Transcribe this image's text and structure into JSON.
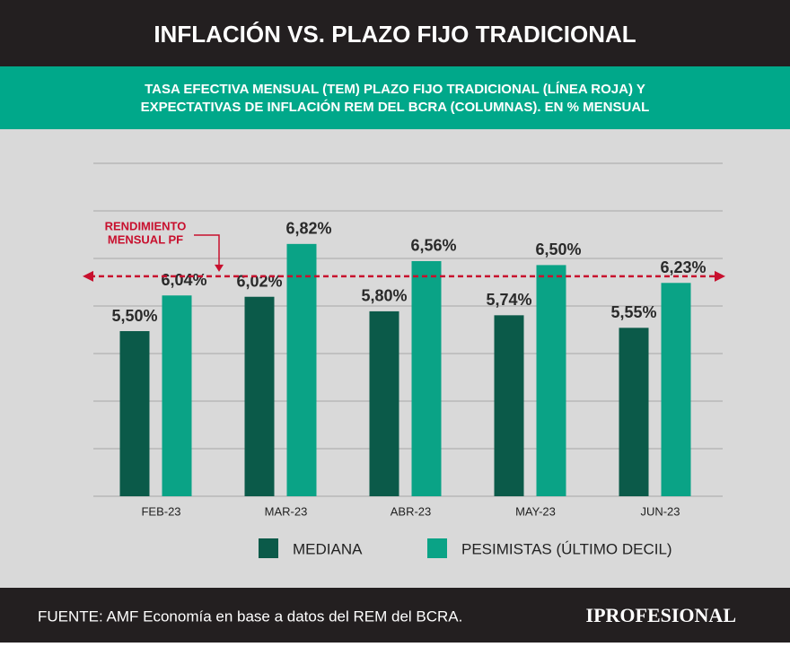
{
  "chart_data": {
    "type": "bar",
    "title": "INFLACIÓN VS. PLAZO FIJO TRADICIONAL",
    "subtitle": [
      "TASA EFECTIVA MENSUAL (TEM) PLAZO FIJO TRADICIONAL (LÍNEA ROJA) Y",
      "EXPECTATIVAS DE INFLACIÓN REM DEL BCRA (COLUMNAS). EN % MENSUAL"
    ],
    "categories": [
      "FEB-23",
      "MAR-23",
      "ABR-23",
      "MAY-23",
      "JUN-23"
    ],
    "series": [
      {
        "name": "MEDIANA",
        "color": "#0b5a49",
        "values": [
          5.5,
          6.02,
          5.8,
          5.74,
          5.55
        ],
        "value_labels": [
          "5,50%",
          "6,02%",
          "5,80%",
          "5,74%",
          "5,55%"
        ]
      },
      {
        "name": "PESIMISTAS (ÚLTIMO DECIL)",
        "color": "#0aa386",
        "values": [
          6.04,
          6.82,
          6.56,
          6.5,
          6.23
        ],
        "value_labels": [
          "6,04%",
          "6,82%",
          "6,56%",
          "6,50%",
          "6,23%"
        ]
      }
    ],
    "reference_line": {
      "value": 6.33,
      "color": "#c8102e",
      "label": [
        "RENDIMIENTO",
        "MENSUAL PF"
      ]
    },
    "ylim": [
      3,
      8
    ],
    "grid": true,
    "source": "FUENTE: AMF Economía en base a datos del REM del BCRA.",
    "brand": "IPROFESIONAL"
  }
}
